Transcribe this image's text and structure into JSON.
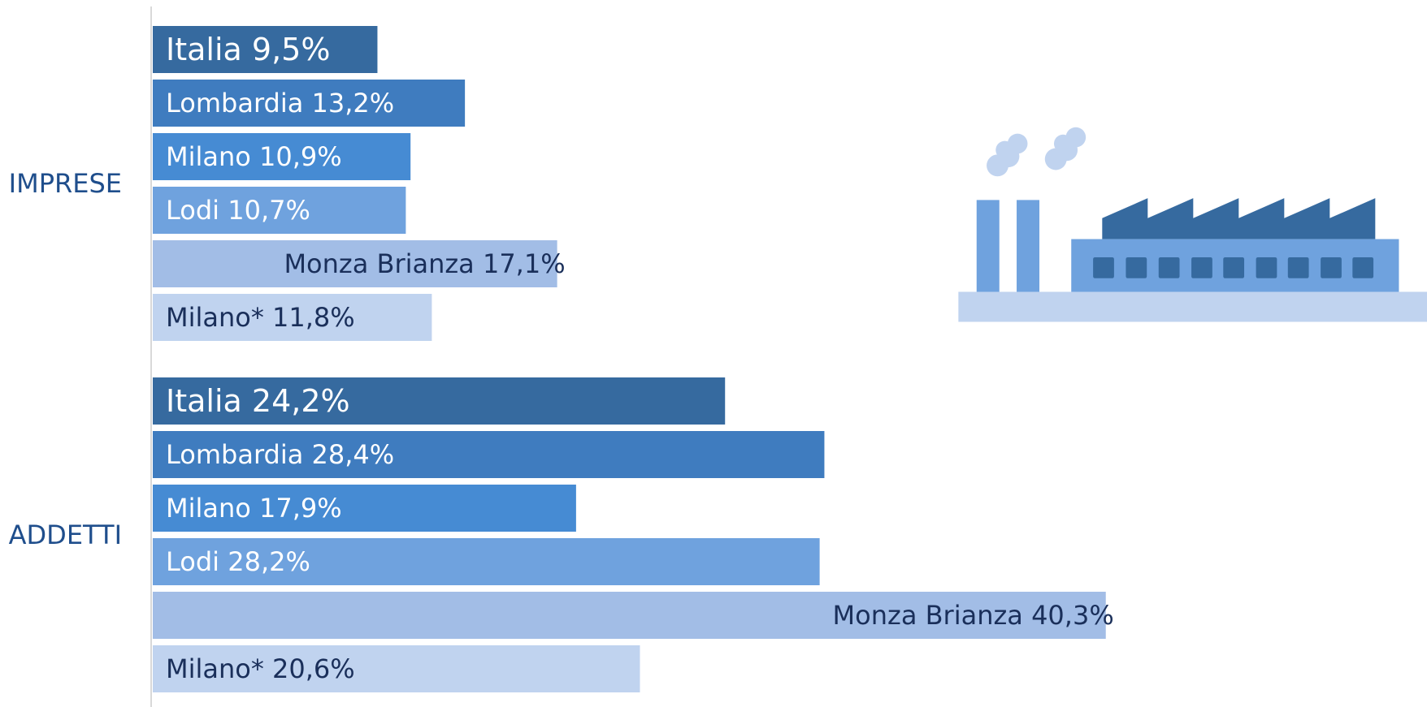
{
  "chart_data": {
    "type": "bar",
    "orientation": "horizontal",
    "categories": [
      "Italia",
      "Lombardia",
      "Milano",
      "Lodi",
      "Monza Brianza",
      "Milano*"
    ],
    "colors": [
      "#366a9f",
      "#3f7cbf",
      "#468bd3",
      "#6fa2de",
      "#a2bde6",
      "#c0d3ef"
    ],
    "label_colors": [
      "#ffffff",
      "#ffffff",
      "#ffffff",
      "#ffffff",
      "#1a2f5a",
      "#1a2f5a"
    ],
    "label_positions": [
      "inside-start",
      "inside-start",
      "inside-start",
      "inside-start",
      "inside-end",
      "inside-start"
    ],
    "series": [
      {
        "name": "IMPRESE",
        "values": [
          9.5,
          13.2,
          10.9,
          10.7,
          17.1,
          11.8
        ],
        "value_labels": [
          "9,5%",
          "13,2%",
          "10,9%",
          "10,7%",
          "17,1%",
          "11,8%"
        ]
      },
      {
        "name": "ADDETTI",
        "values": [
          24.2,
          28.4,
          17.9,
          28.2,
          40.3,
          20.6
        ],
        "value_labels": [
          "24,2%",
          "28,4%",
          "17,9%",
          "28,2%",
          "40,3%",
          "20,6%"
        ]
      }
    ]
  }
}
